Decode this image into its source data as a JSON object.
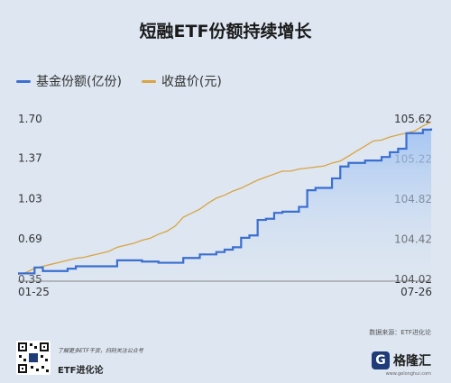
{
  "chart_data": {
    "type": "line",
    "title": "短融ETF份额持续增长",
    "x_start_label": "01-25",
    "x_end_label": "07-26",
    "x": [
      0,
      1,
      2,
      3,
      4,
      5,
      6,
      7,
      8,
      9,
      10,
      11,
      12,
      13,
      14,
      15,
      16,
      17,
      18,
      19,
      20,
      21,
      22,
      23,
      24,
      25,
      26,
      27,
      28,
      29,
      30,
      31,
      32,
      33,
      34,
      35,
      36,
      37,
      38,
      39,
      40,
      41,
      42,
      43,
      44,
      45,
      46,
      47,
      48,
      49,
      50
    ],
    "left_axis": {
      "ticks": [
        "0.35",
        "0.69",
        "1.03",
        "1.37",
        "1.70"
      ],
      "ylim": [
        0.35,
        1.7
      ]
    },
    "right_axis": {
      "ticks": [
        "104.02",
        "104.42",
        "104.82",
        "105.22",
        "105.62"
      ],
      "ylim": [
        104.02,
        105.62
      ]
    },
    "series": [
      {
        "name": "基金份额(亿份)",
        "axis": "left",
        "color": "#3b6fd0",
        "fill": true,
        "values": [
          0.4,
          0.4,
          0.45,
          0.42,
          0.42,
          0.42,
          0.44,
          0.46,
          0.46,
          0.46,
          0.46,
          0.46,
          0.51,
          0.51,
          0.51,
          0.5,
          0.5,
          0.49,
          0.49,
          0.49,
          0.53,
          0.53,
          0.56,
          0.56,
          0.58,
          0.6,
          0.62,
          0.7,
          0.72,
          0.85,
          0.86,
          0.91,
          0.92,
          0.92,
          0.96,
          1.1,
          1.12,
          1.12,
          1.2,
          1.3,
          1.33,
          1.33,
          1.35,
          1.35,
          1.38,
          1.42,
          1.45,
          1.58,
          1.58,
          1.61,
          1.62
        ]
      },
      {
        "name": "收盘价(元)",
        "axis": "right",
        "color": "#d9a441",
        "fill": false,
        "values": [
          104.07,
          104.09,
          104.13,
          104.15,
          104.17,
          104.19,
          104.21,
          104.23,
          104.24,
          104.26,
          104.28,
          104.3,
          104.34,
          104.36,
          104.38,
          104.41,
          104.43,
          104.47,
          104.5,
          104.55,
          104.64,
          104.68,
          104.72,
          104.78,
          104.83,
          104.86,
          104.9,
          104.93,
          104.97,
          105.01,
          105.04,
          105.07,
          105.1,
          105.1,
          105.12,
          105.13,
          105.14,
          105.15,
          105.18,
          105.2,
          105.25,
          105.3,
          105.35,
          105.4,
          105.41,
          105.44,
          105.46,
          105.48,
          105.5,
          105.55,
          105.59
        ]
      }
    ],
    "grid": false,
    "legend_position": "top-left"
  },
  "source": "数据来源：ETF进化论",
  "footer": {
    "promo": "了解更多ETF干货，扫码关注公众号",
    "brand": "ETF进化论",
    "logo_mark": "G",
    "logo_name": "格隆汇",
    "logo_url": "www.gelonghui.com"
  },
  "colors": {
    "background": "#dde6f1",
    "shares": "#3b6fd0",
    "price": "#d9a441"
  }
}
